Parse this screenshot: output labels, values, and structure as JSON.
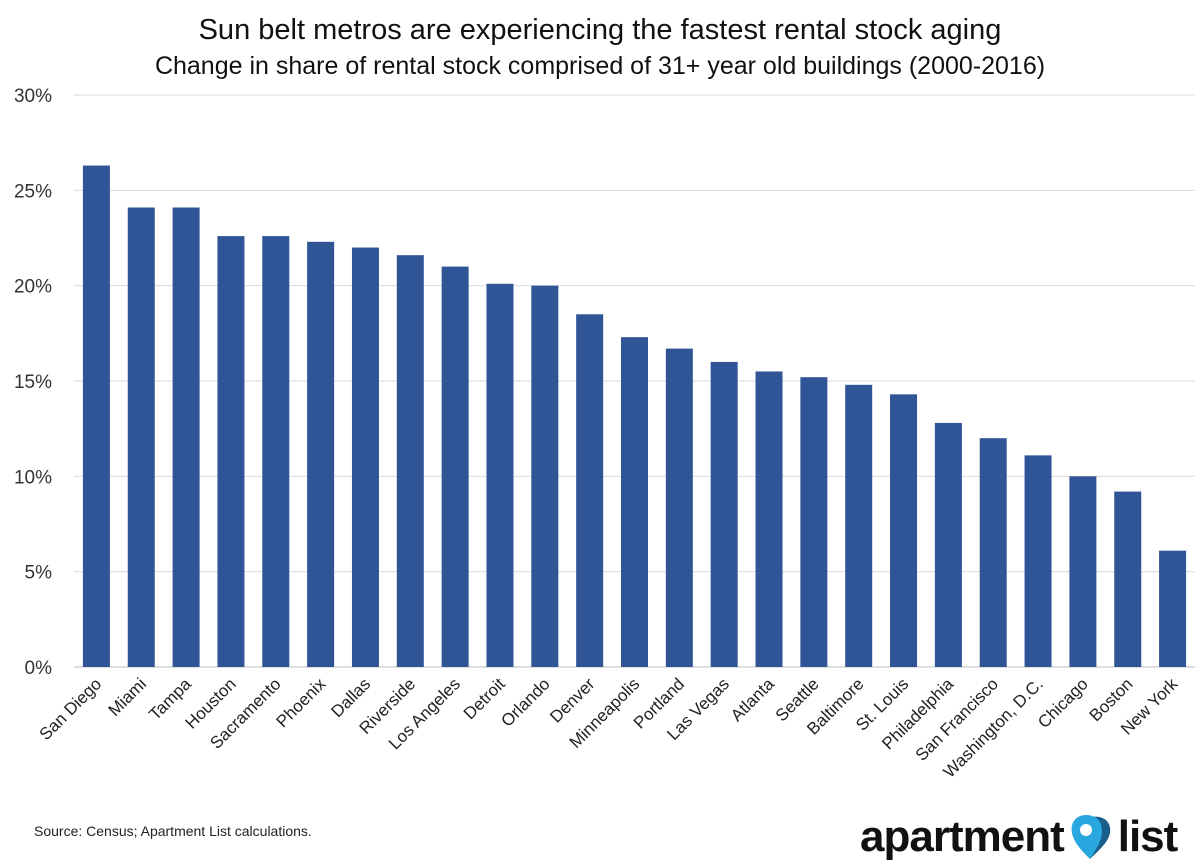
{
  "chart_data": {
    "type": "bar",
    "title": "Sun belt metros are experiencing the fastest rental stock aging",
    "subtitle": "Change in share of rental stock comprised of 31+ year old buildings (2000-2016)",
    "xlabel": "",
    "ylabel": "",
    "ylim": [
      0,
      30
    ],
    "yticks": [
      0,
      5,
      10,
      15,
      20,
      25,
      30
    ],
    "ytick_labels": [
      "0%",
      "5%",
      "10%",
      "15%",
      "20%",
      "25%",
      "30%"
    ],
    "grid": true,
    "categories": [
      "San Diego",
      "Miami",
      "Tampa",
      "Houston",
      "Sacramento",
      "Phoenix",
      "Dallas",
      "Riverside",
      "Los Angeles",
      "Detroit",
      "Orlando",
      "Denver",
      "Minneapolis",
      "Portland",
      "Las Vegas",
      "Atlanta",
      "Seattle",
      "Baltimore",
      "St. Louis",
      "Philadelphia",
      "San Francisco",
      "Washington, D.C.",
      "Chicago",
      "Boston",
      "New York"
    ],
    "values": [
      26.3,
      24.1,
      24.1,
      22.6,
      22.6,
      22.3,
      22.0,
      21.6,
      21.0,
      20.1,
      20.0,
      18.5,
      17.3,
      16.7,
      16.0,
      15.5,
      15.2,
      14.8,
      14.3,
      12.8,
      12.0,
      11.1,
      10.0,
      9.2,
      6.1
    ],
    "bar_color": "#2f5597"
  },
  "footer": {
    "source": "Source: Census; Apartment List calculations.",
    "logo_left": "apartment",
    "logo_right": "list"
  },
  "colors": {
    "logo_pin_light": "#29a8e0",
    "logo_pin_dark": "#1a5f8a"
  }
}
